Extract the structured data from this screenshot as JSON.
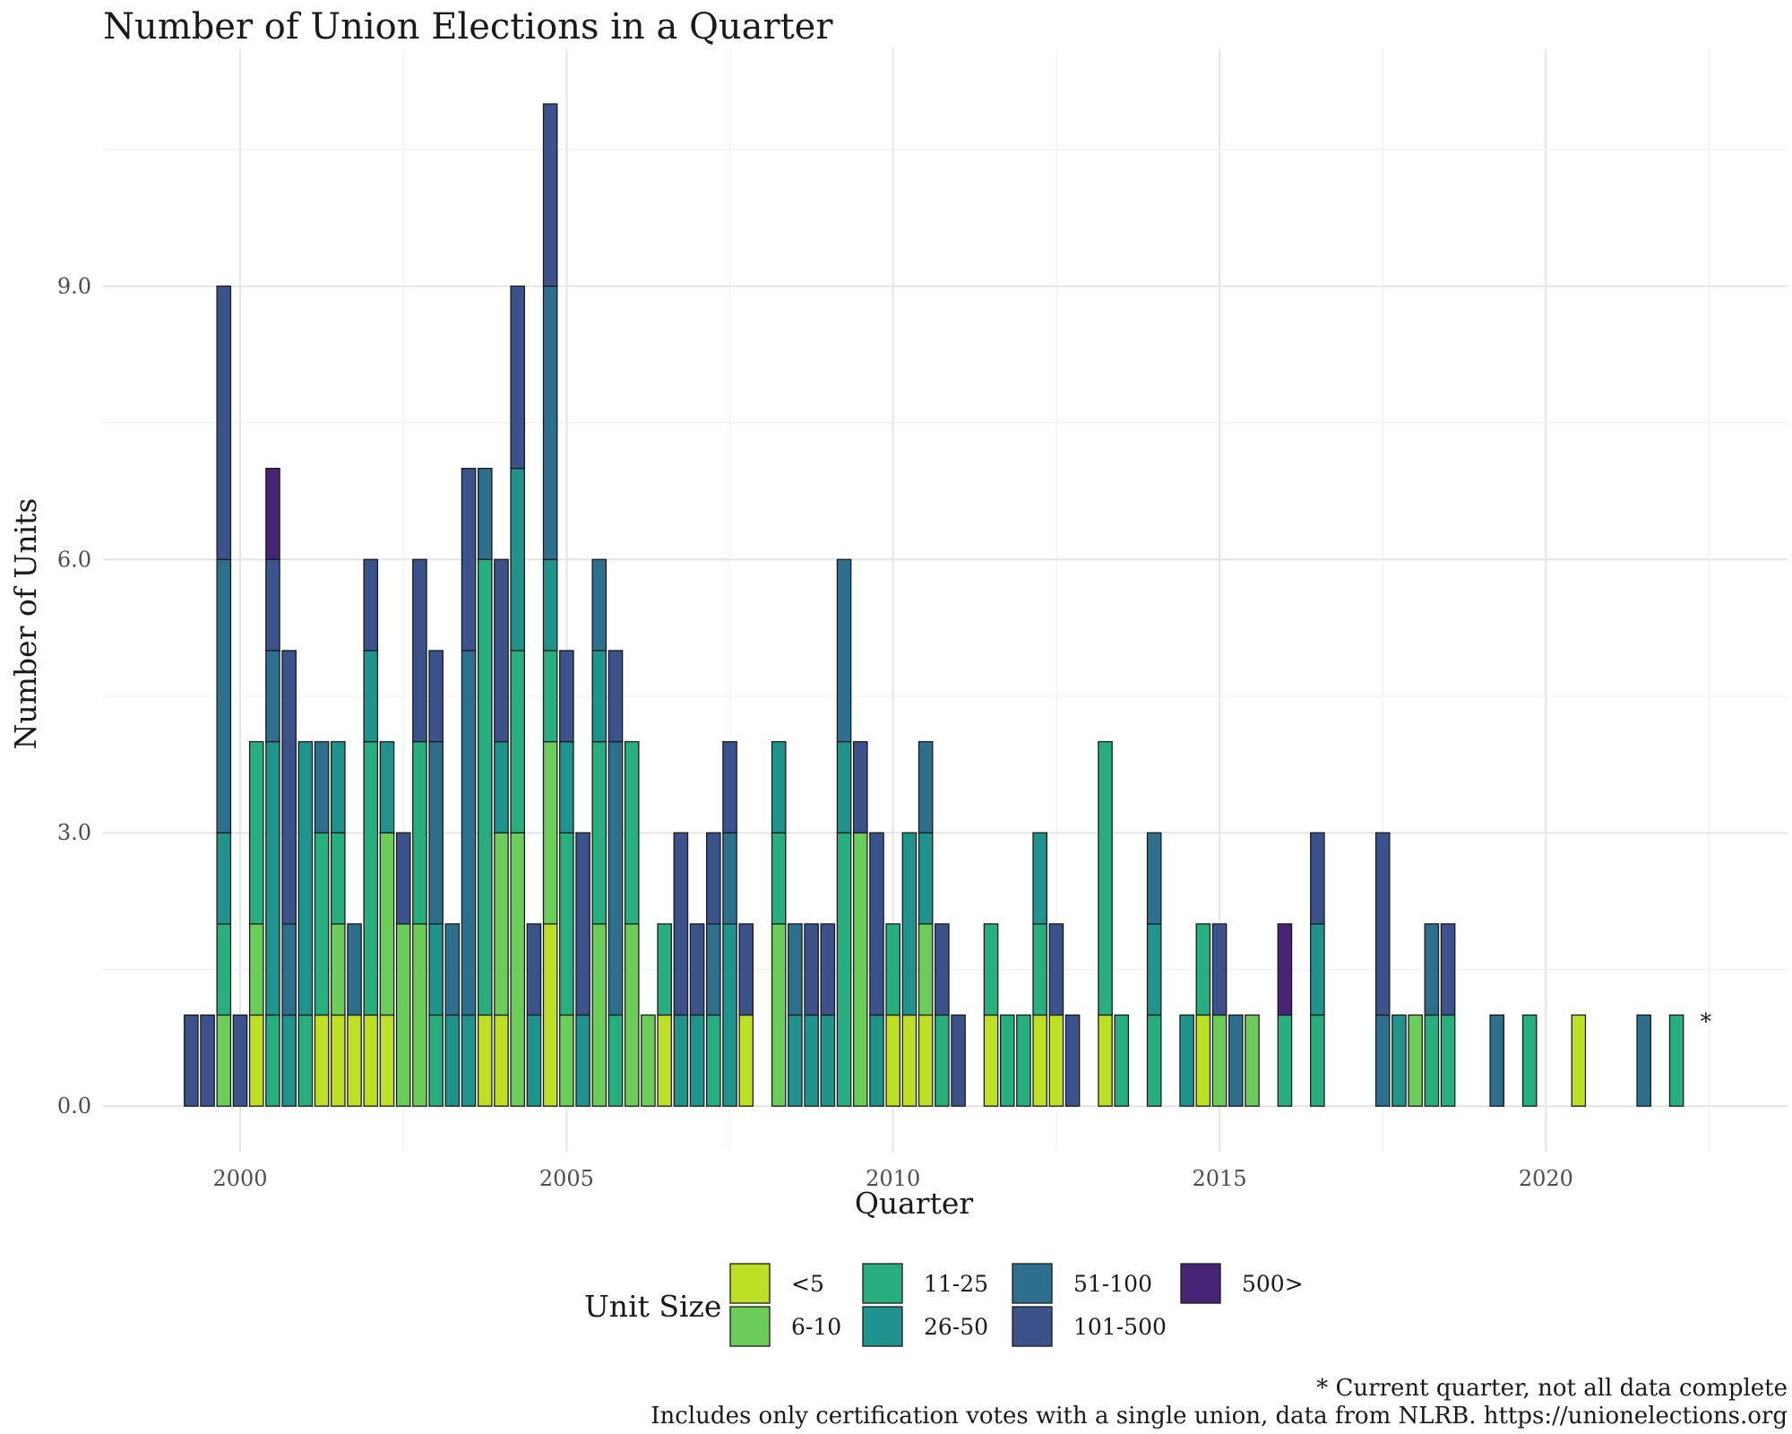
{
  "chart_data": {
    "type": "bar",
    "stacked": true,
    "title": "Number of Union Elections in a Quarter",
    "xlabel": "Quarter",
    "ylabel": "Number of Units",
    "xlim": [
      1997.9,
      2023.7
    ],
    "ylim": [
      -0.5,
      11.6
    ],
    "x_ticks": [
      2000,
      2005,
      2010,
      2015,
      2020
    ],
    "x_tick_labels": [
      "2000",
      "2005",
      "2010",
      "2015",
      "2020"
    ],
    "y_ticks": [
      0,
      3,
      6,
      9
    ],
    "y_tick_labels": [
      "0.0",
      "3.0",
      "6.0",
      "9.0"
    ],
    "grid": true,
    "bar_width_years": 0.21,
    "categories_order": [
      "<5",
      "6-10",
      "11-25",
      "26-50",
      "51-100",
      "101-500",
      "500>"
    ],
    "colors": {
      "<5": "#bddf26",
      "6-10": "#6ccd5a",
      "11-25": "#29af7f",
      "26-50": "#20938c",
      "51-100": "#2e6f8e",
      "101-500": "#3b528b",
      "500>": "#482475"
    },
    "legend": {
      "title": "Unit Size",
      "position": "bottom",
      "entries": [
        "<5",
        "6-10",
        "11-25",
        "26-50",
        "51-100",
        "101-500",
        "500>"
      ]
    },
    "bars": [
      {
        "x": 1999.25,
        "segments": {
          "101-500": 1
        }
      },
      {
        "x": 1999.5,
        "segments": {
          "101-500": 1
        }
      },
      {
        "x": 1999.75,
        "segments": {
          "6-10": 1,
          "11-25": 1,
          "26-50": 1,
          "51-100": 3,
          "101-500": 3
        }
      },
      {
        "x": 2000.0,
        "segments": {
          "101-500": 1
        }
      },
      {
        "x": 2000.25,
        "segments": {
          "<5": 1,
          "6-10": 1,
          "11-25": 2
        }
      },
      {
        "x": 2000.5,
        "segments": {
          "11-25": 1,
          "26-50": 3,
          "51-100": 1,
          "101-500": 1,
          "500>": 1
        }
      },
      {
        "x": 2000.75,
        "segments": {
          "26-50": 1,
          "51-100": 1,
          "101-500": 3
        }
      },
      {
        "x": 2001.0,
        "segments": {
          "11-25": 1,
          "26-50": 3
        }
      },
      {
        "x": 2001.25,
        "segments": {
          "<5": 1,
          "11-25": 2,
          "51-100": 1
        }
      },
      {
        "x": 2001.5,
        "segments": {
          "<5": 1,
          "6-10": 1,
          "11-25": 1,
          "26-50": 1
        }
      },
      {
        "x": 2001.75,
        "segments": {
          "<5": 1,
          "51-100": 1
        }
      },
      {
        "x": 2002.0,
        "segments": {
          "<5": 1,
          "11-25": 3,
          "26-50": 1,
          "101-500": 1
        }
      },
      {
        "x": 2002.25,
        "segments": {
          "<5": 1,
          "6-10": 2,
          "26-50": 1
        }
      },
      {
        "x": 2002.5,
        "segments": {
          "6-10": 2,
          "101-500": 1
        }
      },
      {
        "x": 2002.75,
        "segments": {
          "6-10": 2,
          "11-25": 2,
          "101-500": 2
        }
      },
      {
        "x": 2003.0,
        "segments": {
          "11-25": 1,
          "26-50": 1,
          "51-100": 2,
          "101-500": 1
        }
      },
      {
        "x": 2003.25,
        "segments": {
          "26-50": 1,
          "51-100": 1
        }
      },
      {
        "x": 2003.5,
        "segments": {
          "26-50": 1,
          "51-100": 4,
          "101-500": 2
        }
      },
      {
        "x": 2003.75,
        "segments": {
          "<5": 1,
          "11-25": 5,
          "51-100": 1
        }
      },
      {
        "x": 2004.0,
        "segments": {
          "<5": 1,
          "6-10": 2,
          "26-50": 1,
          "101-500": 2
        }
      },
      {
        "x": 2004.25,
        "segments": {
          "6-10": 3,
          "11-25": 2,
          "26-50": 2,
          "101-500": 2
        }
      },
      {
        "x": 2004.5,
        "segments": {
          "26-50": 1,
          "101-500": 1
        }
      },
      {
        "x": 2004.75,
        "segments": {
          "<5": 2,
          "6-10": 2,
          "11-25": 1,
          "26-50": 1,
          "51-100": 3,
          "101-500": 2
        }
      },
      {
        "x": 2005.0,
        "segments": {
          "6-10": 1,
          "11-25": 2,
          "26-50": 1,
          "101-500": 1
        }
      },
      {
        "x": 2005.25,
        "segments": {
          "26-50": 1,
          "101-500": 2
        }
      },
      {
        "x": 2005.5,
        "segments": {
          "6-10": 2,
          "11-25": 2,
          "26-50": 1,
          "51-100": 1
        }
      },
      {
        "x": 2005.75,
        "segments": {
          "11-25": 1,
          "51-100": 3,
          "101-500": 1
        }
      },
      {
        "x": 2006.0,
        "segments": {
          "6-10": 2,
          "11-25": 2
        }
      },
      {
        "x": 2006.25,
        "segments": {
          "6-10": 1
        }
      },
      {
        "x": 2006.5,
        "segments": {
          "<5": 1,
          "11-25": 1
        }
      },
      {
        "x": 2006.75,
        "segments": {
          "26-50": 1,
          "101-500": 2
        }
      },
      {
        "x": 2007.0,
        "segments": {
          "26-50": 1,
          "101-500": 1
        }
      },
      {
        "x": 2007.25,
        "segments": {
          "11-25": 1,
          "51-100": 1,
          "101-500": 1
        }
      },
      {
        "x": 2007.5,
        "segments": {
          "26-50": 2,
          "51-100": 1,
          "101-500": 1
        }
      },
      {
        "x": 2007.75,
        "segments": {
          "<5": 1,
          "101-500": 1
        }
      },
      {
        "x": 2008.25,
        "segments": {
          "6-10": 2,
          "11-25": 1,
          "26-50": 1
        }
      },
      {
        "x": 2008.5,
        "segments": {
          "26-50": 1,
          "51-100": 1
        }
      },
      {
        "x": 2008.75,
        "segments": {
          "26-50": 1,
          "101-500": 1
        }
      },
      {
        "x": 2009.0,
        "segments": {
          "26-50": 1,
          "101-500": 1
        }
      },
      {
        "x": 2009.25,
        "segments": {
          "26-50": 1,
          "11-25": 3,
          "51-100": 2
        }
      },
      {
        "x": 2009.5,
        "segments": {
          "6-10": 3,
          "101-500": 1
        }
      },
      {
        "x": 2009.75,
        "segments": {
          "26-50": 1,
          "101-500": 2
        }
      },
      {
        "x": 2010.0,
        "segments": {
          "<5": 1,
          "11-25": 1
        }
      },
      {
        "x": 2010.25,
        "segments": {
          "<5": 1,
          "26-50": 2
        }
      },
      {
        "x": 2010.5,
        "segments": {
          "<5": 1,
          "6-10": 1,
          "26-50": 1,
          "51-100": 1
        }
      },
      {
        "x": 2010.75,
        "segments": {
          "11-25": 1,
          "101-500": 1
        }
      },
      {
        "x": 2011.0,
        "segments": {
          "101-500": 1
        }
      },
      {
        "x": 2011.5,
        "segments": {
          "<5": 1,
          "11-25": 1
        }
      },
      {
        "x": 2011.75,
        "segments": {
          "11-25": 1
        }
      },
      {
        "x": 2012.0,
        "segments": {
          "11-25": 1
        }
      },
      {
        "x": 2012.25,
        "segments": {
          "<5": 1,
          "11-25": 1,
          "26-50": 1
        }
      },
      {
        "x": 2012.5,
        "segments": {
          "<5": 1,
          "101-500": 1
        }
      },
      {
        "x": 2012.75,
        "segments": {
          "101-500": 1
        }
      },
      {
        "x": 2013.25,
        "segments": {
          "<5": 1,
          "11-25": 3
        }
      },
      {
        "x": 2013.5,
        "segments": {
          "11-25": 1
        }
      },
      {
        "x": 2014.0,
        "segments": {
          "11-25": 1,
          "26-50": 1,
          "51-100": 1
        }
      },
      {
        "x": 2014.5,
        "segments": {
          "26-50": 1
        }
      },
      {
        "x": 2014.75,
        "segments": {
          "<5": 1,
          "11-25": 1
        }
      },
      {
        "x": 2015.0,
        "segments": {
          "6-10": 1,
          "101-500": 1
        }
      },
      {
        "x": 2015.25,
        "segments": {
          "51-100": 1
        }
      },
      {
        "x": 2015.5,
        "segments": {
          "6-10": 1
        }
      },
      {
        "x": 2016.0,
        "segments": {
          "11-25": 1,
          "500>": 1
        }
      },
      {
        "x": 2016.5,
        "segments": {
          "11-25": 1,
          "26-50": 1,
          "101-500": 1
        }
      },
      {
        "x": 2017.5,
        "segments": {
          "51-100": 1,
          "101-500": 2
        }
      },
      {
        "x": 2017.75,
        "segments": {
          "26-50": 1
        }
      },
      {
        "x": 2018.0,
        "segments": {
          "6-10": 1
        }
      },
      {
        "x": 2018.25,
        "segments": {
          "11-25": 1,
          "51-100": 1
        }
      },
      {
        "x": 2018.5,
        "segments": {
          "11-25": 1,
          "101-500": 1
        }
      },
      {
        "x": 2019.25,
        "segments": {
          "51-100": 1
        }
      },
      {
        "x": 2019.75,
        "segments": {
          "11-25": 1
        }
      },
      {
        "x": 2020.5,
        "segments": {
          "<5": 1
        }
      },
      {
        "x": 2021.5,
        "segments": {
          "51-100": 1
        }
      },
      {
        "x": 2022.0,
        "segments": {
          "11-25": 1
        }
      }
    ],
    "annotations": [
      {
        "text": "*",
        "x": 2022.45,
        "y": 1.0
      }
    ],
    "captions": [
      "* Current quarter, not all data complete",
      "Includes only certification votes with a single union, data from NLRB. https://unionelections.org"
    ]
  }
}
